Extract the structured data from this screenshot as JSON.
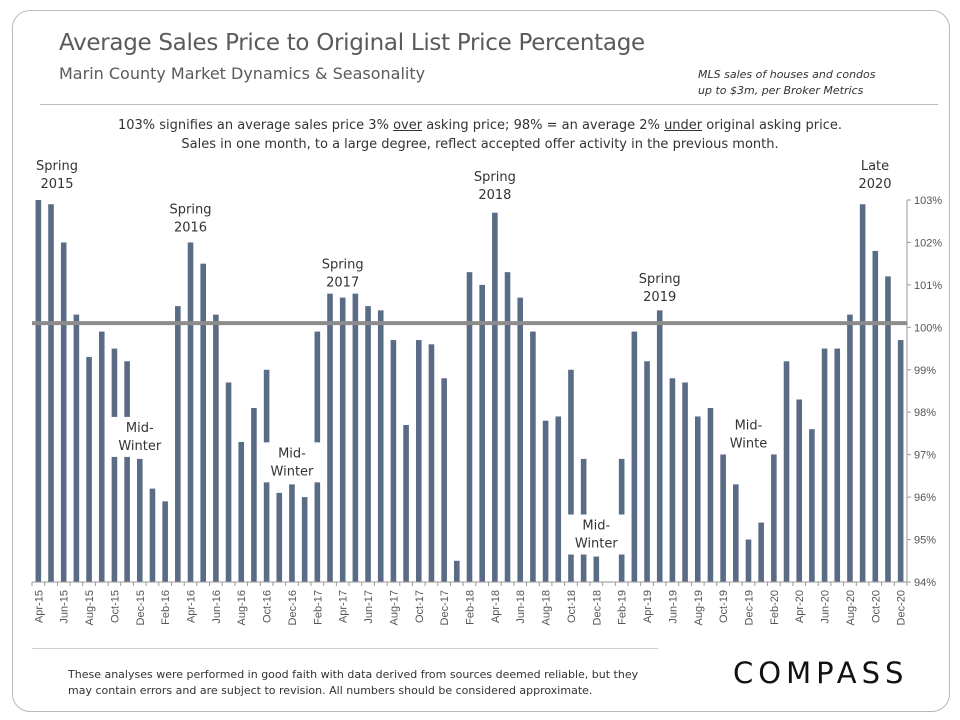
{
  "header": {
    "title": "Average Sales Price to Original List Price Percentage",
    "subtitle": "Marin County Market Dynamics & Seasonality",
    "source_line1": "MLS sales of houses and condos",
    "source_line2": "up to $3m, per Broker Metrics"
  },
  "note": {
    "part1": "103% signifies an average sales price 3% ",
    "over": "over",
    "part2": " asking price; 98% = an average 2% ",
    "under": "under",
    "part3": " original asking price. Sales in one month, to a large degree, reflect accepted offer activity in the previous month."
  },
  "chart_data": {
    "type": "bar",
    "months": [
      "Apr-15",
      "May-15",
      "Jun-15",
      "Jul-15",
      "Aug-15",
      "Sep-15",
      "Oct-15",
      "Nov-15",
      "Dec-15",
      "Jan-16",
      "Feb-16",
      "Mar-16",
      "Apr-16",
      "May-16",
      "Jun-16",
      "Jul-16",
      "Aug-16",
      "Sep-16",
      "Oct-16",
      "Nov-16",
      "Dec-16",
      "Jan-17",
      "Feb-17",
      "Mar-17",
      "Apr-17",
      "May-17",
      "Jun-17",
      "Jul-17",
      "Aug-17",
      "Sep-17",
      "Oct-17",
      "Nov-17",
      "Dec-17",
      "Jan-18",
      "Feb-18",
      "Mar-18",
      "Apr-18",
      "May-18",
      "Jun-18",
      "Jul-18",
      "Aug-18",
      "Sep-18",
      "Oct-18",
      "Nov-18",
      "Dec-18",
      "Jan-19",
      "Feb-19",
      "Mar-19",
      "Apr-19",
      "May-19",
      "Jun-19",
      "Jul-19",
      "Aug-19",
      "Sep-19",
      "Oct-19",
      "Nov-19",
      "Dec-19",
      "Jan-20",
      "Feb-20",
      "Mar-20",
      "Apr-20",
      "May-20",
      "Jun-20",
      "Jul-20",
      "Aug-20",
      "Sep-20",
      "Oct-20",
      "Nov-20",
      "Dec-20"
    ],
    "values": [
      103.0,
      102.9,
      102.0,
      100.3,
      99.3,
      99.9,
      99.5,
      99.2,
      96.9,
      96.2,
      95.9,
      100.5,
      102.0,
      101.5,
      100.3,
      98.7,
      97.3,
      98.1,
      99.0,
      96.1,
      96.3,
      96.0,
      99.9,
      101.5,
      100.7,
      100.8,
      100.5,
      100.4,
      99.7,
      97.7,
      99.7,
      99.6,
      98.8,
      94.5,
      101.3,
      101.0,
      102.7,
      101.3,
      100.7,
      99.9,
      97.8,
      97.9,
      99.0,
      96.9,
      94.6,
      94.0,
      96.9,
      99.9,
      99.2,
      100.4,
      98.8,
      98.7,
      97.9,
      98.1,
      97.6,
      96.3,
      95.0,
      95.4,
      97.7,
      99.2,
      98.3,
      97.6,
      99.5,
      99.5,
      100.3,
      102.9,
      101.8,
      101.2,
      99.7
    ],
    "tick_labels": [
      "Apr-15",
      "Jun-15",
      "Aug-15",
      "Oct-15",
      "Dec-15",
      "Feb-16",
      "Apr-16",
      "Jun-16",
      "Aug-16",
      "Oct-16",
      "Dec-16",
      "Feb-17",
      "Apr-17",
      "Jun-17",
      "Aug-17",
      "Oct-17",
      "Dec-17",
      "Feb-18",
      "Apr-18",
      "Jun-18",
      "Aug-18",
      "Oct-18",
      "Dec-18",
      "Feb-19",
      "Apr-19",
      "Jun-19",
      "Aug-19",
      "Oct-19",
      "Dec-19",
      "Feb-20",
      "Apr-20",
      "Jun-20",
      "Aug-20",
      "Oct-20",
      "Dec-20"
    ],
    "y_tick_labels": [
      "94%",
      "95%",
      "96%",
      "97%",
      "98%",
      "99%",
      "100%",
      "101%",
      "102%",
      "103%"
    ],
    "ylim": [
      94,
      103
    ],
    "reference_line": 100.1,
    "y_axis_side": "right",
    "grid": false,
    "bar_color": "#5a6b85",
    "reference_line_color": "#8c8c8c",
    "annotations": [
      {
        "lines": [
          "Spring",
          "2015"
        ],
        "month": "Apr-15"
      },
      {
        "lines": [
          "Spring",
          "2016"
        ],
        "month": "Apr-16"
      },
      {
        "lines": [
          "Spring",
          "2017"
        ],
        "month": "Apr-17"
      },
      {
        "lines": [
          "Spring",
          "2018"
        ],
        "month": "Apr-18"
      },
      {
        "lines": [
          "Spring",
          "2019"
        ],
        "month": "May-19"
      },
      {
        "lines": [
          "Late",
          "2020"
        ],
        "month": "Sep-20"
      },
      {
        "lines": [
          "Mid-",
          "Winter"
        ],
        "month": "Dec-15"
      },
      {
        "lines": [
          "Mid-",
          "Winter"
        ],
        "month": "Dec-16"
      },
      {
        "lines": [
          "Mid-",
          "Winter"
        ],
        "month": "Dec-18"
      },
      {
        "lines": [
          "Mid-",
          "Winte"
        ],
        "month": "Dec-19"
      }
    ]
  },
  "footer": {
    "disclaimer": "These analyses were performed in good faith with data derived from sources deemed reliable, but they may contain errors and are subject to revision. All numbers should be considered approximate.",
    "logo": "COMPASS"
  }
}
